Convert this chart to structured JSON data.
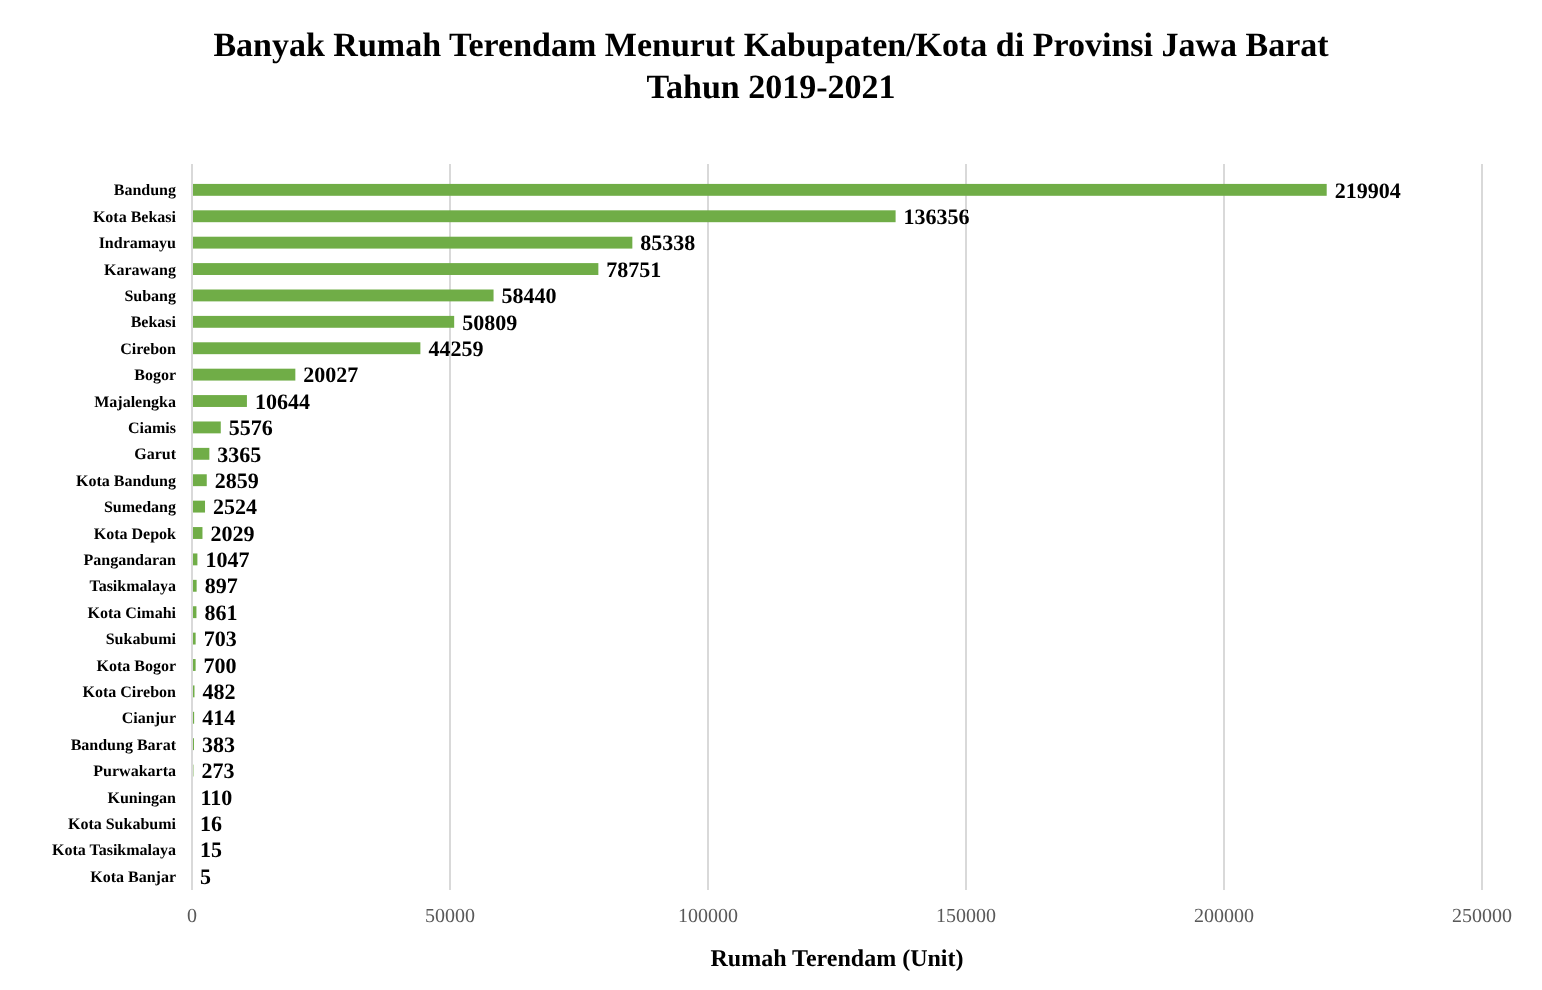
{
  "chart_data": {
    "type": "bar",
    "orientation": "horizontal",
    "title": "Banyak Rumah Terendam  Menurut Kabupaten/Kota di Provinsi Jawa Barat\nTahun 2019-2021",
    "xlabel": "Rumah Terendam (Unit)",
    "categories": [
      "Bandung",
      "Kota Bekasi",
      "Indramayu",
      "Karawang",
      "Subang",
      "Bekasi",
      "Cirebon",
      "Bogor",
      "Majalengka",
      "Ciamis",
      "Garut",
      "Kota Bandung",
      "Sumedang",
      "Kota Depok",
      "Pangandaran",
      "Tasikmalaya",
      "Kota Cimahi",
      "Sukabumi",
      "Kota Bogor",
      "Kota Cirebon",
      "Cianjur",
      "Bandung Barat",
      "Purwakarta",
      "Kuningan",
      "Kota Sukabumi",
      "Kota Tasikmalaya",
      "Kota Banjar"
    ],
    "values": [
      219904,
      136356,
      85338,
      78751,
      58440,
      50809,
      44259,
      20027,
      10644,
      5576,
      3365,
      2859,
      2524,
      2029,
      1047,
      897,
      861,
      703,
      700,
      482,
      414,
      383,
      273,
      110,
      16,
      15,
      5
    ],
    "color": "#70ad47",
    "xlim": [
      0,
      250000
    ],
    "xticks": [
      0,
      50000,
      100000,
      150000,
      200000,
      250000
    ],
    "grid": "x",
    "data_labels": true
  }
}
